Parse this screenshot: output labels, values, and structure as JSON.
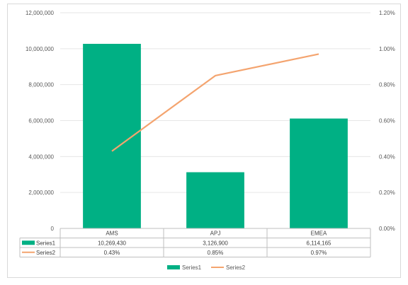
{
  "chart_data": {
    "type": "bar",
    "categories": [
      "AMS",
      "APJ",
      "EMEA"
    ],
    "series": [
      {
        "name": "Series1",
        "type": "bar",
        "axis": "primary",
        "values": [
          10269430,
          3126900,
          6114165
        ],
        "labels": [
          "10,269,430",
          "3,126,900",
          "6,114,165"
        ]
      },
      {
        "name": "Series2",
        "type": "line",
        "axis": "secondary",
        "values": [
          0.0043,
          0.0085,
          0.0097
        ],
        "labels": [
          "0.43%",
          "0.85%",
          "0.97%"
        ]
      }
    ],
    "y_ticks": [
      "0",
      "2,000,000",
      "4,000,000",
      "6,000,000",
      "8,000,000",
      "10,000,000",
      "12,000,000"
    ],
    "y2_ticks": [
      "0.00%",
      "0.20%",
      "0.40%",
      "0.60%",
      "0.80%",
      "1.00%",
      "1.20%"
    ],
    "ylim": [
      0,
      12000000
    ],
    "y2lim": [
      0,
      0.012
    ],
    "grid": true,
    "data_table": true,
    "legend": "bottom",
    "colors": {
      "Series1": "#00b084",
      "Series2": "#f4a46f",
      "grid": "#e6e6e6",
      "axis": "#bfbfbf"
    }
  }
}
